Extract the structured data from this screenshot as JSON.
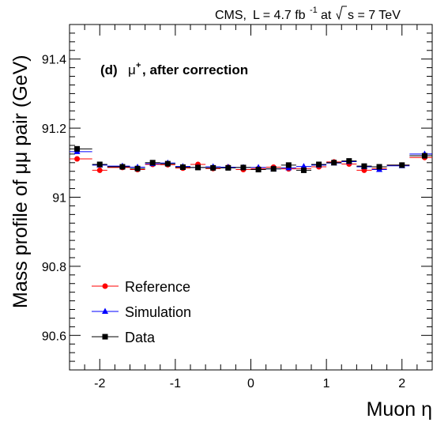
{
  "header": {
    "cms": "CMS,",
    "lumi_prefix": "L = 4.7 fb",
    "lumi_exp": "-1",
    "at": "at",
    "sqrt_s": "s = 7 TeV"
  },
  "annotation": {
    "panel": "(d)",
    "mu": "μ",
    "charge": "+",
    "rest": ", after correction"
  },
  "chart_data": {
    "type": "scatter",
    "xlabel": "Muon η",
    "ylabel": "Mass profile of μμ pair (GeV)",
    "xlim": [
      -2.4,
      2.4
    ],
    "ylim": [
      90.5,
      91.5
    ],
    "x_ticks": [
      -2,
      -1,
      0,
      1,
      2
    ],
    "x_tick_labels": [
      "-2",
      "-1",
      "0",
      "1",
      "2"
    ],
    "y_ticks": [
      90.6,
      90.8,
      91,
      91.2,
      91.4
    ],
    "y_tick_labels": [
      "90.6",
      "90.8",
      "91",
      "91.2",
      "91.4"
    ],
    "grid": false,
    "legend_position": "bottom-left",
    "x": [
      -2.3,
      -2.0,
      -1.7,
      -1.5,
      -1.3,
      -1.1,
      -0.9,
      -0.7,
      -0.5,
      -0.3,
      -0.1,
      0.1,
      0.3,
      0.5,
      0.7,
      0.9,
      1.1,
      1.3,
      1.5,
      1.7,
      2.0,
      2.3
    ],
    "x_bin_edges": [
      -2.4,
      -2.1,
      -1.9,
      -1.6,
      -1.4,
      -1.2,
      -1.0,
      -0.8,
      -0.6,
      -0.4,
      -0.2,
      0.0,
      0.2,
      0.4,
      0.6,
      0.8,
      1.0,
      1.2,
      1.4,
      1.6,
      1.8,
      2.1,
      2.4
    ],
    "series": [
      {
        "name": "Reference",
        "color": "#ff0000",
        "marker": "circle",
        "values": [
          91.111,
          91.078,
          91.086,
          91.08,
          91.095,
          91.094,
          91.084,
          91.095,
          91.083,
          91.087,
          91.08,
          91.083,
          91.087,
          91.082,
          91.083,
          91.088,
          91.102,
          91.096,
          91.078,
          91.083,
          91.093,
          91.115
        ]
      },
      {
        "name": "Simulation",
        "color": "#0000ff",
        "marker": "triangle",
        "values": [
          91.132,
          91.093,
          91.09,
          91.087,
          91.097,
          91.099,
          91.089,
          91.086,
          91.088,
          91.087,
          91.086,
          91.086,
          91.082,
          91.085,
          91.089,
          91.093,
          91.099,
          91.103,
          91.088,
          91.08,
          91.091,
          91.125
        ]
      },
      {
        "name": "Data",
        "color": "#000000",
        "marker": "square",
        "values": [
          91.14,
          91.095,
          91.088,
          91.083,
          91.1,
          91.097,
          91.087,
          91.086,
          91.085,
          91.085,
          91.086,
          91.08,
          91.082,
          91.093,
          91.078,
          91.095,
          91.1,
          91.105,
          91.09,
          91.088,
          91.093,
          91.12
        ]
      }
    ]
  }
}
